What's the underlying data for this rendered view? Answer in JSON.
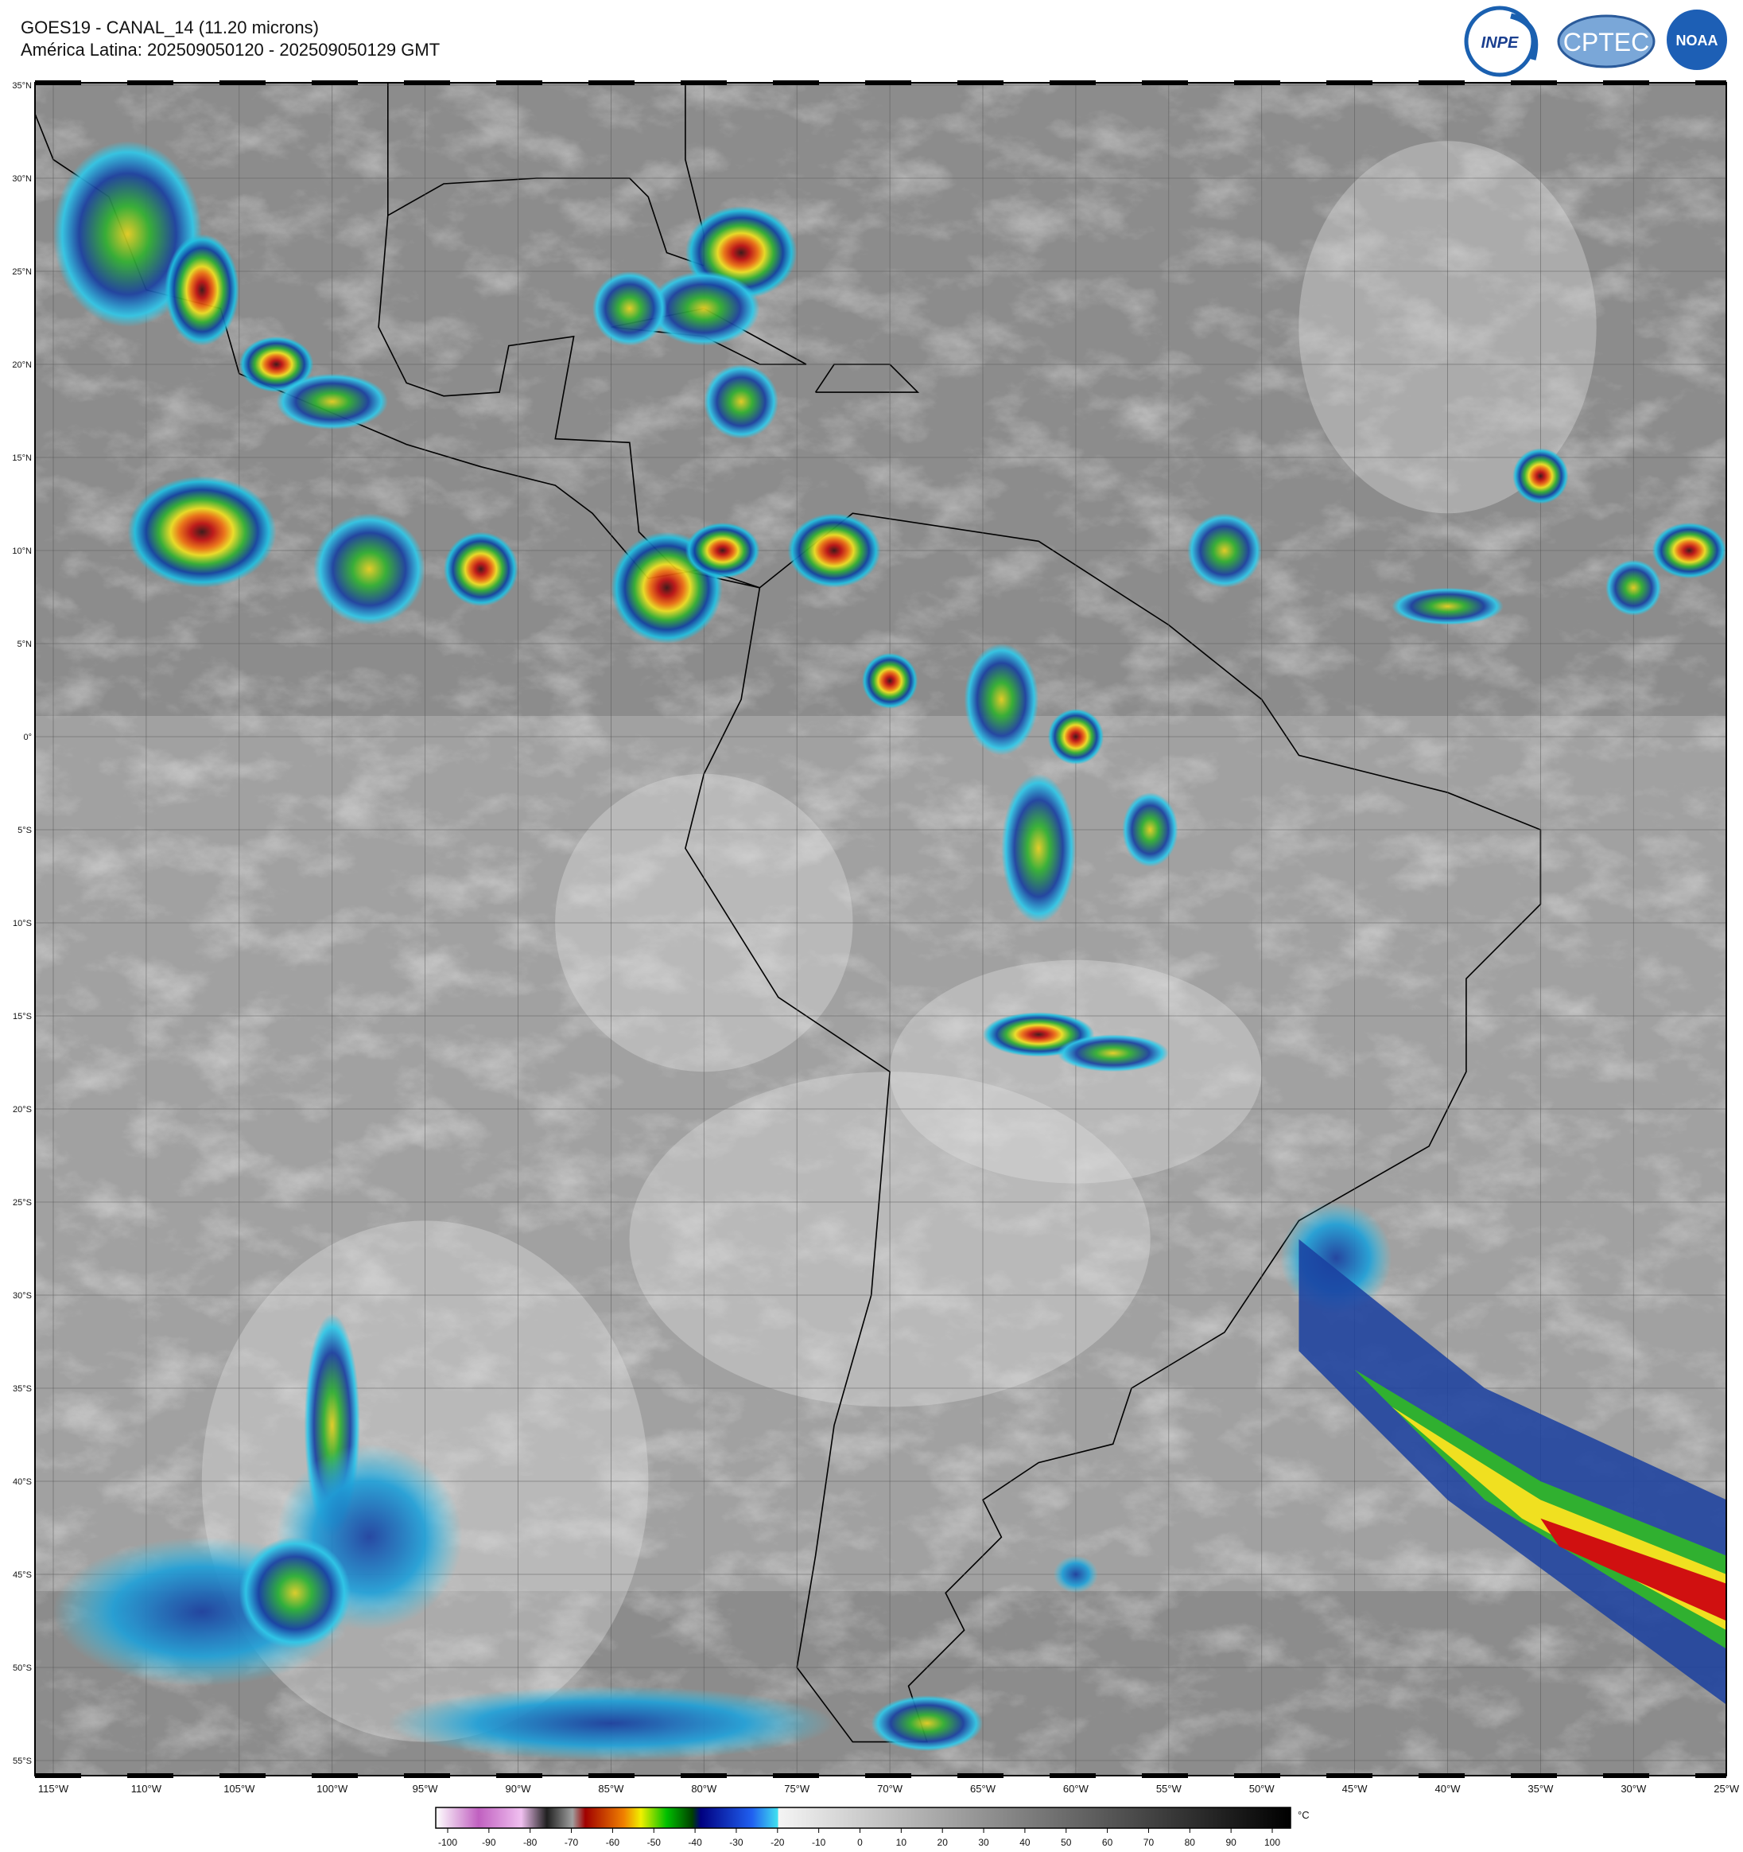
{
  "header": {
    "title": "GOES19 - CANAL_14 (11.20 microns)",
    "subtitle": "América Latina: 202509050120 - 202509050129 GMT"
  },
  "logos": [
    "INPE",
    "CPTEC",
    "NOAA"
  ],
  "map": {
    "lon_labels": [
      "115°W",
      "110°W",
      "105°W",
      "100°W",
      "95°W",
      "90°W",
      "85°W",
      "80°W",
      "75°W",
      "70°W",
      "65°W",
      "60°W",
      "55°W",
      "50°W",
      "45°W",
      "40°W",
      "35°W",
      "30°W",
      "25°W"
    ],
    "lat_labels": [
      "35°N",
      "30°N",
      "25°N",
      "20°N",
      "15°N",
      "10°N",
      "5°N",
      "0°",
      "5°S",
      "10°S",
      "15°S",
      "20°S",
      "25°S",
      "30°S",
      "35°S",
      "40°S",
      "45°S",
      "50°S",
      "55°S"
    ]
  },
  "colorbar": {
    "ticks": [
      -100,
      -90,
      -80,
      -70,
      -60,
      -50,
      -40,
      -30,
      -20,
      -10,
      0,
      10,
      20,
      30,
      40,
      50,
      60,
      70,
      80,
      90,
      100
    ],
    "unit": "°C"
  }
}
